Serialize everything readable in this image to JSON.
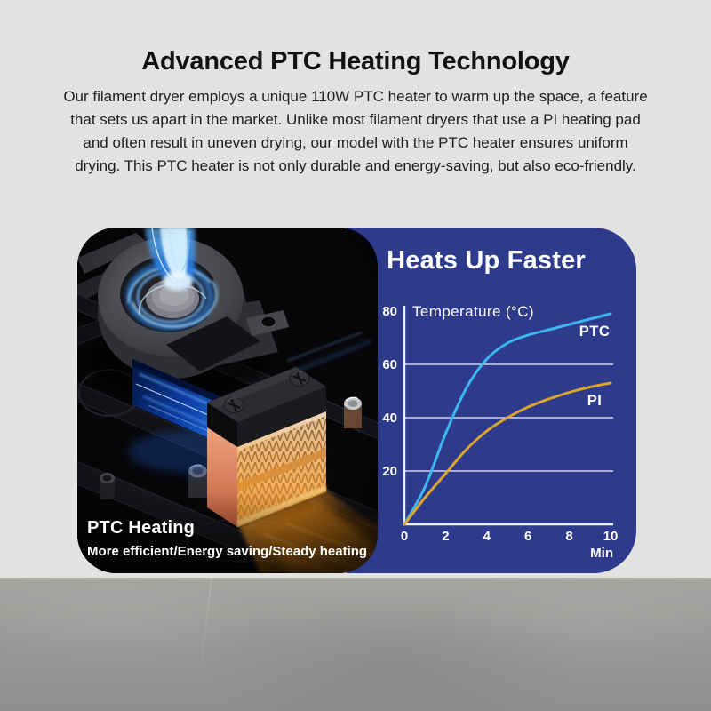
{
  "header": {
    "title": "Advanced PTC Heating Technology",
    "description_lines": [
      "Our filament dryer employs a unique 110W PTC heater to warm up the space, a feature",
      "that sets us apart in the market. Unlike most filament dryers that use a PI heating pad",
      "and often result in uneven drying, our model with the PTC heater ensures uniform",
      "drying. This PTC heater is not only durable and energy-saving, but also eco-friendly."
    ]
  },
  "left_panel": {
    "caption_title": "PTC Heating",
    "caption_subtitle": "More efficient/Energy saving/Steady heating",
    "illustration_parts": [
      "blower-fan",
      "blue-airflow-stream",
      "air-duct",
      "ptc-heater-block",
      "orange-heat-glow"
    ]
  },
  "right_panel": {
    "title": "Heats Up Faster"
  },
  "chart_data": {
    "type": "line",
    "title": "Heats Up Faster",
    "ylabel": "Temperature  (°C)",
    "xlabel": "Min",
    "xlim": [
      0,
      10
    ],
    "ylim": [
      0,
      82
    ],
    "x_ticks": [
      0,
      2,
      4,
      6,
      8,
      10
    ],
    "y_ticks": [
      20,
      40,
      60,
      80
    ],
    "y_gridlines": [
      20,
      40,
      60
    ],
    "grid": "horizontal-only",
    "legend_position": "inline-right",
    "x": [
      0,
      1,
      2,
      3,
      4,
      5,
      6,
      7,
      8,
      9,
      10
    ],
    "series": [
      {
        "name": "PTC",
        "color": "#3cb5f0",
        "values": [
          0,
          14,
          34,
          51,
          62,
          68,
          71,
          73,
          75,
          77,
          79
        ]
      },
      {
        "name": "PI",
        "color": "#d9a52f",
        "values": [
          0,
          10,
          19,
          28,
          35,
          40,
          44,
          47,
          49.5,
          51.5,
          53
        ]
      }
    ],
    "axis_color": "#eef0f7",
    "grid_color": "#d8dcea",
    "text_color": "#ffffff"
  },
  "colors": {
    "background": "#e2e2e1",
    "panel_blue": "#2e3a8c",
    "panel_black": "#050506",
    "floor_gray": "#9b9a98",
    "title_text": "#121212",
    "body_text": "#1d1d1d"
  }
}
